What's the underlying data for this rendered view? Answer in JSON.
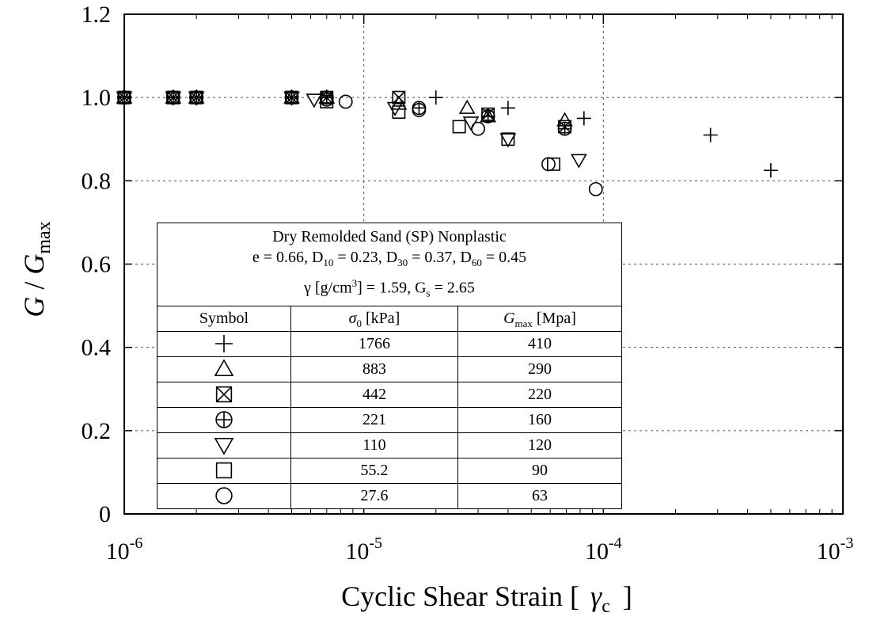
{
  "chart_data": {
    "type": "scatter",
    "xscale": "log",
    "xlim": [
      1e-06,
      0.001
    ],
    "ylim": [
      0,
      1.2
    ],
    "xticks": [
      {
        "value": 1e-06,
        "base": "10",
        "exp": "-6"
      },
      {
        "value": 1e-05,
        "base": "10",
        "exp": "-5"
      },
      {
        "value": 0.0001,
        "base": "10",
        "exp": "-4"
      },
      {
        "value": 0.001,
        "base": "10",
        "exp": "-3"
      }
    ],
    "yticks": [
      {
        "value": 0,
        "label": "0"
      },
      {
        "value": 0.2,
        "label": "0.2"
      },
      {
        "value": 0.4,
        "label": "0.4"
      },
      {
        "value": 0.6,
        "label": "0.6"
      },
      {
        "value": 0.8,
        "label": "0.8"
      },
      {
        "value": 1.0,
        "label": "1.0"
      },
      {
        "value": 1.2,
        "label": "1.2"
      }
    ],
    "grid": true,
    "xlabel": {
      "text": "Cyclic Shear Strain  [",
      "symbol": "γ",
      "sub": "c",
      "end": "]"
    },
    "ylabel": {
      "g": "G",
      "sep": " / ",
      "g2": "G",
      "sub": "max"
    },
    "series": [
      {
        "symbol": "plus",
        "sigma0_kPa": "1766",
        "gmax_MPa": "410",
        "points": [
          [
            1e-06,
            1.0
          ],
          [
            1.6e-06,
            1.0
          ],
          [
            2e-06,
            1.0
          ],
          [
            5e-06,
            1.0
          ],
          [
            7e-06,
            1.0
          ],
          [
            2e-05,
            1.0
          ],
          [
            4e-05,
            0.975
          ],
          [
            8.3e-05,
            0.95
          ],
          [
            0.00028,
            0.91
          ],
          [
            0.0005,
            0.825
          ]
        ]
      },
      {
        "symbol": "triangle-up",
        "sigma0_kPa": "883",
        "gmax_MPa": "290",
        "points": [
          [
            1e-06,
            1.0
          ],
          [
            1.6e-06,
            1.0
          ],
          [
            2e-06,
            1.0
          ],
          [
            5e-06,
            1.0
          ],
          [
            7e-06,
            1.0
          ],
          [
            1.4e-05,
            0.985
          ],
          [
            2.7e-05,
            0.975
          ],
          [
            3.3e-05,
            0.955
          ],
          [
            6.9e-05,
            0.945
          ]
        ]
      },
      {
        "symbol": "box-x",
        "sigma0_kPa": "442",
        "gmax_MPa": "220",
        "points": [
          [
            1e-06,
            1.0
          ],
          [
            1.6e-06,
            1.0
          ],
          [
            2e-06,
            1.0
          ],
          [
            5e-06,
            1.0
          ],
          [
            7e-06,
            1.0
          ],
          [
            1.4e-05,
            1.0
          ],
          [
            3.3e-05,
            0.96
          ],
          [
            6.9e-05,
            0.93
          ]
        ]
      },
      {
        "symbol": "circle-plus",
        "sigma0_kPa": "221",
        "gmax_MPa": "160",
        "points": [
          [
            1e-06,
            1.0
          ],
          [
            1.6e-06,
            1.0
          ],
          [
            2e-06,
            1.0
          ],
          [
            5e-06,
            1.0
          ],
          [
            7e-06,
            1.0
          ],
          [
            1.7e-05,
            0.975
          ],
          [
            3.3e-05,
            0.955
          ],
          [
            6.9e-05,
            0.925
          ]
        ]
      },
      {
        "symbol": "triangle-down",
        "sigma0_kPa": "110",
        "gmax_MPa": "120",
        "points": [
          [
            1e-06,
            1.0
          ],
          [
            1.6e-06,
            1.0
          ],
          [
            2e-06,
            1.0
          ],
          [
            5e-06,
            1.0
          ],
          [
            6.2e-06,
            0.995
          ],
          [
            1.35e-05,
            0.975
          ],
          [
            2.8e-05,
            0.94
          ],
          [
            4e-05,
            0.9
          ],
          [
            7.9e-05,
            0.85
          ]
        ]
      },
      {
        "symbol": "square",
        "sigma0_kPa": "55.2",
        "gmax_MPa": "90",
        "points": [
          [
            1e-06,
            1.0
          ],
          [
            1.6e-06,
            1.0
          ],
          [
            2e-06,
            1.0
          ],
          [
            5e-06,
            1.0
          ],
          [
            7e-06,
            0.99
          ],
          [
            1.4e-05,
            0.965
          ],
          [
            2.5e-05,
            0.93
          ],
          [
            4e-05,
            0.9
          ],
          [
            6.2e-05,
            0.84
          ]
        ]
      },
      {
        "symbol": "circle",
        "sigma0_kPa": "27.6",
        "gmax_MPa": "63",
        "points": [
          [
            1e-06,
            1.0
          ],
          [
            1.6e-06,
            1.0
          ],
          [
            2e-06,
            1.0
          ],
          [
            5e-06,
            1.0
          ],
          [
            7e-06,
            0.995
          ],
          [
            8.4e-06,
            0.99
          ],
          [
            1.7e-05,
            0.97
          ],
          [
            3e-05,
            0.925
          ],
          [
            5.9e-05,
            0.84
          ],
          [
            9.3e-05,
            0.78
          ]
        ]
      }
    ]
  },
  "legend": {
    "title": "Dry Remolded Sand (SP) Nonplastic",
    "props": {
      "e_text": "e = 0.66, D",
      "d10_sub": "10",
      "d10_val": " = 0.23, D",
      "d30_sub": "30",
      "d30_val": " = 0.37, D",
      "d60_sub": "60",
      "d60_val": " = 0.45",
      "gamma": "γ",
      "gamma_unit_a": " [g/cm",
      "gamma_exp": "3",
      "gamma_unit_b": "] = 1.59, G",
      "gs_sub": "s",
      "gs_val": " = 2.65"
    },
    "columns": {
      "symbol": "Symbol",
      "sigma_sym": "σ",
      "sigma_sub": "0",
      "sigma_unit": " [kPa]",
      "gmax_sym": "G",
      "gmax_sub": "max",
      "gmax_unit": " [Mpa]"
    }
  }
}
